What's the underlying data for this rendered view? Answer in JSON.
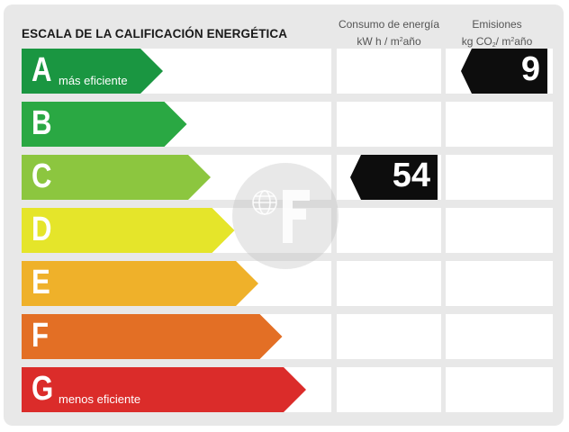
{
  "header": {
    "title": "ESCALA DE LA CALIFICACIÓN ENERGÉTICA",
    "energy_col": {
      "line1": "Consumo de energía",
      "line2_pre": "kW h / m",
      "line2_sup": "2",
      "line2_post": "año"
    },
    "emissions_col": {
      "line1": "Emisiones",
      "line2_pre": "kg CO",
      "line2_sub": "2",
      "line2_mid": "/ m",
      "line2_sup": "2",
      "line2_post": "año"
    }
  },
  "scale": [
    {
      "letter": "A",
      "label": "más eficiente",
      "color": "#1a9641"
    },
    {
      "letter": "B",
      "label": "",
      "color": "#2aa843"
    },
    {
      "letter": "C",
      "label": "",
      "color": "#8cc63f"
    },
    {
      "letter": "D",
      "label": "",
      "color": "#e5e52a"
    },
    {
      "letter": "E",
      "label": "",
      "color": "#efb12a"
    },
    {
      "letter": "F",
      "label": "",
      "color": "#e36f25"
    },
    {
      "letter": "G",
      "label": "menos eficiente",
      "color": "#db2c2a"
    }
  ],
  "rating": {
    "energy": {
      "letter": "C",
      "value": "54"
    },
    "emissions": {
      "letter": "A",
      "value": "9"
    }
  }
}
